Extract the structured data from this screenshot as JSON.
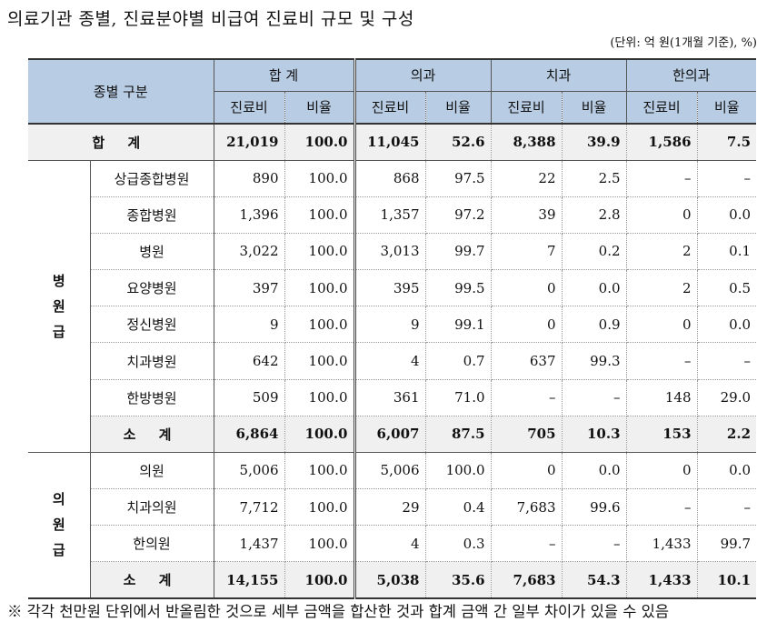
{
  "title": "의료기관 종별, 진료분야별 비급여 진료비 규모 및 구성",
  "unit": "(단위: 억 원(1개월 기준), %)",
  "header": {
    "category": "종별 구분",
    "groups": [
      "합 계",
      "의과",
      "치과",
      "한의과"
    ],
    "sub_cost": "진료비",
    "sub_ratio": "비율"
  },
  "total": {
    "label": "합 계",
    "cells": [
      "21,019",
      "100.0",
      "11,045",
      "52.6",
      "8,388",
      "39.9",
      "1,586",
      "7.5"
    ]
  },
  "groups": [
    {
      "label": "병\n원\n급",
      "rows": [
        {
          "name": "상급종합병원",
          "cells": [
            "890",
            "100.0",
            "868",
            "97.5",
            "22",
            "2.5",
            "–",
            "–"
          ]
        },
        {
          "name": "종합병원",
          "cells": [
            "1,396",
            "100.0",
            "1,357",
            "97.2",
            "39",
            "2.8",
            "0",
            "0.0"
          ]
        },
        {
          "name": "병원",
          "cells": [
            "3,022",
            "100.0",
            "3,013",
            "99.7",
            "7",
            "0.2",
            "2",
            "0.1"
          ]
        },
        {
          "name": "요양병원",
          "cells": [
            "397",
            "100.0",
            "395",
            "99.5",
            "0",
            "0.0",
            "2",
            "0.5"
          ]
        },
        {
          "name": "정신병원",
          "cells": [
            "9",
            "100.0",
            "9",
            "99.1",
            "0",
            "0.9",
            "0",
            "0.0"
          ]
        },
        {
          "name": "치과병원",
          "cells": [
            "642",
            "100.0",
            "4",
            "0.7",
            "637",
            "99.3",
            "–",
            "–"
          ]
        },
        {
          "name": "한방병원",
          "cells": [
            "509",
            "100.0",
            "361",
            "71.0",
            "–",
            "–",
            "148",
            "29.0"
          ]
        }
      ],
      "subtotal": {
        "label": "소 계",
        "cells": [
          "6,864",
          "100.0",
          "6,007",
          "87.5",
          "705",
          "10.3",
          "153",
          "2.2"
        ]
      }
    },
    {
      "label": "의\n원\n급",
      "rows": [
        {
          "name": "의원",
          "cells": [
            "5,006",
            "100.0",
            "5,006",
            "100.0",
            "0",
            "0.0",
            "0",
            "0.0"
          ]
        },
        {
          "name": "치과의원",
          "cells": [
            "7,712",
            "100.0",
            "29",
            "0.4",
            "7,683",
            "99.6",
            "–",
            "–"
          ]
        },
        {
          "name": "한의원",
          "cells": [
            "1,437",
            "100.0",
            "4",
            "0.3",
            "–",
            "–",
            "1,433",
            "99.7"
          ]
        }
      ],
      "subtotal": {
        "label": "소 계",
        "cells": [
          "14,155",
          "100.0",
          "5,038",
          "35.6",
          "7,683",
          "54.3",
          "1,433",
          "10.1"
        ]
      }
    }
  ],
  "note": "※ 각각 천만원 단위에서 반올림한 것으로 세부 금액을 합산한 것과 합계 금액 간 일부 차이가 있을 수 있음"
}
